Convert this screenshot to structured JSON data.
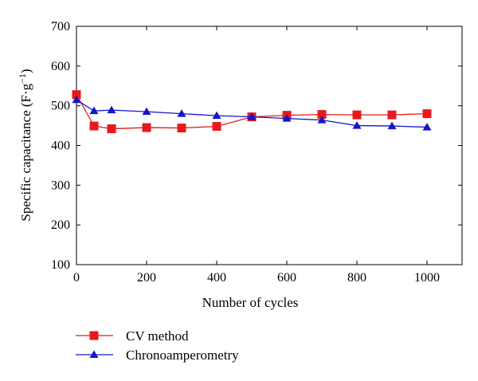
{
  "chart_data": {
    "type": "line",
    "title": "",
    "xlabel": "Number of cycles",
    "ylabel": "Specific capacitance (F·g",
    "ylabel_sup": "−1",
    "ylabel_close": ")",
    "xlim": [
      0,
      1100
    ],
    "ylim": [
      100,
      700
    ],
    "xticks": [
      0,
      200,
      400,
      600,
      800,
      1000
    ],
    "yticks": [
      100,
      200,
      300,
      400,
      500,
      600,
      700
    ],
    "grid": false,
    "legend_position": "bottom-left, below plot",
    "series": [
      {
        "name": "CV method",
        "color": "#e8191c",
        "marker": "square",
        "x": [
          0,
          50,
          100,
          200,
          300,
          400,
          500,
          600,
          700,
          800,
          900,
          1000
        ],
        "y": [
          528,
          449,
          442,
          445,
          444,
          448,
          472,
          476,
          478,
          477,
          477,
          480
        ]
      },
      {
        "name": "Chronoamperometry",
        "color": "#1414c8",
        "marker": "triangle",
        "x": [
          0,
          50,
          100,
          200,
          300,
          400,
          500,
          600,
          700,
          800,
          900,
          1000
        ],
        "y": [
          515,
          487,
          489,
          485,
          480,
          475,
          472,
          468,
          464,
          450,
          449,
          446
        ]
      }
    ]
  }
}
